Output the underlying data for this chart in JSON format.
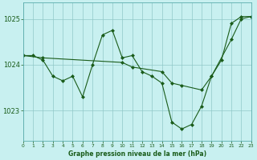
{
  "title": "Graphe pression niveau de la mer (hPa)",
  "bg_color": "#c8f0f0",
  "line_color": "#1a5c1a",
  "grid_color": "#90c8c8",
  "x_min": 0,
  "x_max": 23,
  "y_min": 1022.35,
  "y_max": 1025.35,
  "yticks": [
    1023,
    1024,
    1025
  ],
  "xticks": [
    0,
    1,
    2,
    3,
    4,
    5,
    6,
    7,
    8,
    9,
    10,
    11,
    12,
    13,
    14,
    15,
    16,
    17,
    18,
    19,
    20,
    21,
    22,
    23
  ],
  "zigzag_x": [
    0,
    1,
    2,
    3,
    4,
    5,
    6,
    7,
    8,
    9,
    10,
    11,
    12,
    13,
    14,
    15,
    16,
    17,
    18,
    19,
    20,
    21,
    22,
    23
  ],
  "zigzag_y": [
    1024.2,
    1024.2,
    1024.1,
    1023.75,
    1023.65,
    1023.75,
    1023.3,
    1024.0,
    1024.65,
    1024.75,
    1024.15,
    1024.2,
    1023.85,
    1023.75,
    1023.6,
    1022.75,
    1022.6,
    1022.7,
    1023.1,
    1023.75,
    1024.1,
    1024.9,
    1025.05,
    1025.05
  ],
  "trend_x": [
    0,
    2,
    10,
    11,
    14,
    15,
    16,
    18,
    19,
    21,
    22,
    23
  ],
  "trend_y": [
    1024.2,
    1024.15,
    1024.05,
    1023.95,
    1023.85,
    1023.6,
    1023.55,
    1023.45,
    1023.75,
    1024.55,
    1025.0,
    1025.05
  ]
}
